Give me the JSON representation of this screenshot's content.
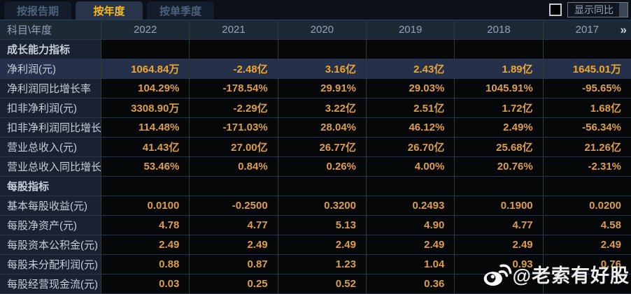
{
  "tabs": [
    {
      "label": "按报告期",
      "active": false
    },
    {
      "label": "按年度",
      "active": true
    },
    {
      "label": "按单季度",
      "active": false
    }
  ],
  "controls": {
    "compare_checkbox_checked": false,
    "compare_label": "显示同比"
  },
  "table": {
    "corner_header": "科目\\年度",
    "year_headers": [
      "2022",
      "2021",
      "2020",
      "2019",
      "2018",
      "2017"
    ],
    "more_icon": "»",
    "rows": [
      {
        "type": "section",
        "label": "成长能力指标",
        "values": [
          "",
          "",
          "",
          "",
          "",
          ""
        ]
      },
      {
        "type": "highlight",
        "label": "净利润(元)",
        "values": [
          "1064.84万",
          "-2.48亿",
          "3.16亿",
          "2.43亿",
          "1.89亿",
          "1645.01万"
        ]
      },
      {
        "type": "data",
        "label": "净利润同比增长率",
        "values": [
          "104.29%",
          "-178.54%",
          "29.91%",
          "29.03%",
          "1045.91%",
          "-95.65%"
        ]
      },
      {
        "type": "data",
        "label": "扣非净利润(元)",
        "values": [
          "3308.90万",
          "-2.29亿",
          "3.22亿",
          "2.51亿",
          "1.72亿",
          "1.68亿"
        ]
      },
      {
        "type": "data",
        "label": "扣非净利润同比增长率",
        "values": [
          "114.48%",
          "-171.03%",
          "28.04%",
          "46.12%",
          "2.49%",
          "-56.34%"
        ]
      },
      {
        "type": "data",
        "label": "营业总收入(元)",
        "values": [
          "41.43亿",
          "27.00亿",
          "26.77亿",
          "26.70亿",
          "25.68亿",
          "21.26亿"
        ]
      },
      {
        "type": "data",
        "label": "营业总收入同比增长率",
        "values": [
          "53.46%",
          "0.84%",
          "0.26%",
          "4.00%",
          "20.76%",
          "-2.31%"
        ]
      },
      {
        "type": "section",
        "label": "每股指标",
        "values": [
          "",
          "",
          "",
          "",
          "",
          ""
        ]
      },
      {
        "type": "data",
        "label": "基本每股收益(元)",
        "values": [
          "0.0100",
          "-0.2500",
          "0.3200",
          "0.2493",
          "0.1900",
          "0.0200"
        ]
      },
      {
        "type": "data",
        "label": "每股净资产(元)",
        "values": [
          "4.78",
          "4.77",
          "5.13",
          "4.90",
          "4.77",
          "4.58"
        ]
      },
      {
        "type": "data",
        "label": "每股资本公积金(元)",
        "values": [
          "2.49",
          "2.49",
          "2.49",
          "2.49",
          "2.49",
          "2.49"
        ]
      },
      {
        "type": "data",
        "label": "每股未分配利润(元)",
        "values": [
          "0.88",
          "0.87",
          "1.23",
          "1.04",
          "0.93",
          "0.76"
        ]
      },
      {
        "type": "data",
        "label": "每股经营现金流(元)",
        "values": [
          "0.03",
          "0.25",
          "0.52",
          "0.36",
          "",
          ""
        ]
      }
    ]
  },
  "watermark": {
    "icon": "weibo-icon",
    "text": "@老索有好股"
  },
  "colors": {
    "accent_gold": "#dc9f47",
    "highlight_value_gold": "#f1a829",
    "tab_active_text": "#f7bb1e",
    "highlight_row_bg": "#25304a",
    "label_column_bg": "#192230",
    "value_cell_bg": "#060709"
  }
}
